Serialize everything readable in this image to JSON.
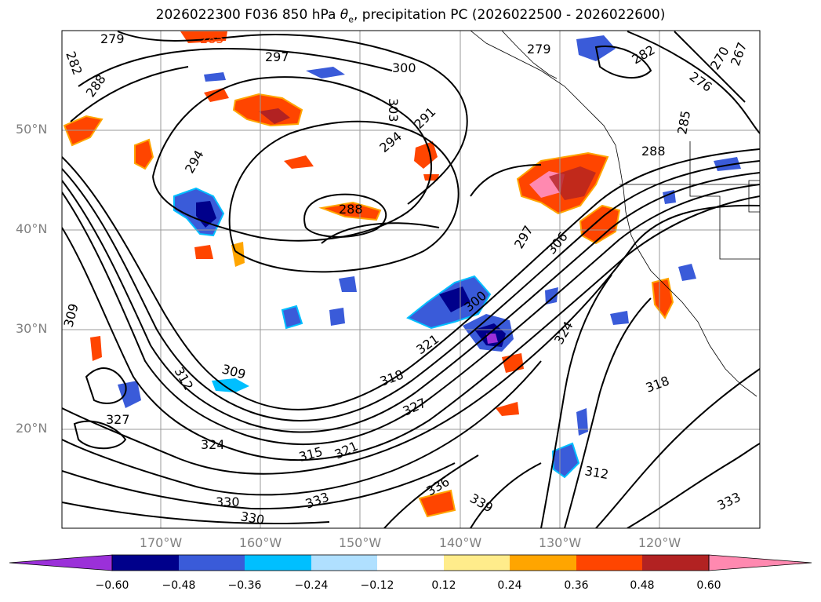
{
  "title": {
    "prefix": "2026022300 F036 850 hPa ",
    "theta": "θ",
    "theta_sub": "e",
    "suffix": ", precipitation PC (2026022500 - 2026022600)"
  },
  "map": {
    "lat_labels": [
      "50°N",
      "40°N",
      "30°N",
      "20°N"
    ],
    "lon_labels": [
      "170°W",
      "160°W",
      "150°W",
      "140°W",
      "130°W",
      "120°W"
    ],
    "contour_labels": [
      "279",
      "285",
      "297",
      "300",
      "303",
      "291",
      "294",
      "288",
      "282",
      "279",
      "276",
      "270",
      "267",
      "282",
      "288",
      "285",
      "294",
      "288",
      "297",
      "306",
      "309",
      "300",
      "312",
      "315",
      "318",
      "321",
      "324",
      "327",
      "330",
      "333",
      "336",
      "339",
      "309",
      "312",
      "318",
      "321",
      "324",
      "327",
      "330",
      "333"
    ]
  },
  "colorbar": {
    "ticks": [
      "−0.60",
      "−0.48",
      "−0.36",
      "−0.24",
      "−0.12",
      "0.12",
      "0.24",
      "0.36",
      "0.48",
      "0.60"
    ],
    "colors": [
      "#9b30d9",
      "#00008b",
      "#3a5bd9",
      "#00bfff",
      "#b0e0ff",
      "#ffffff",
      "#ffec8b",
      "#ffa500",
      "#ff4500",
      "#b22222",
      "#ff89b0",
      "#ff89b0"
    ]
  }
}
